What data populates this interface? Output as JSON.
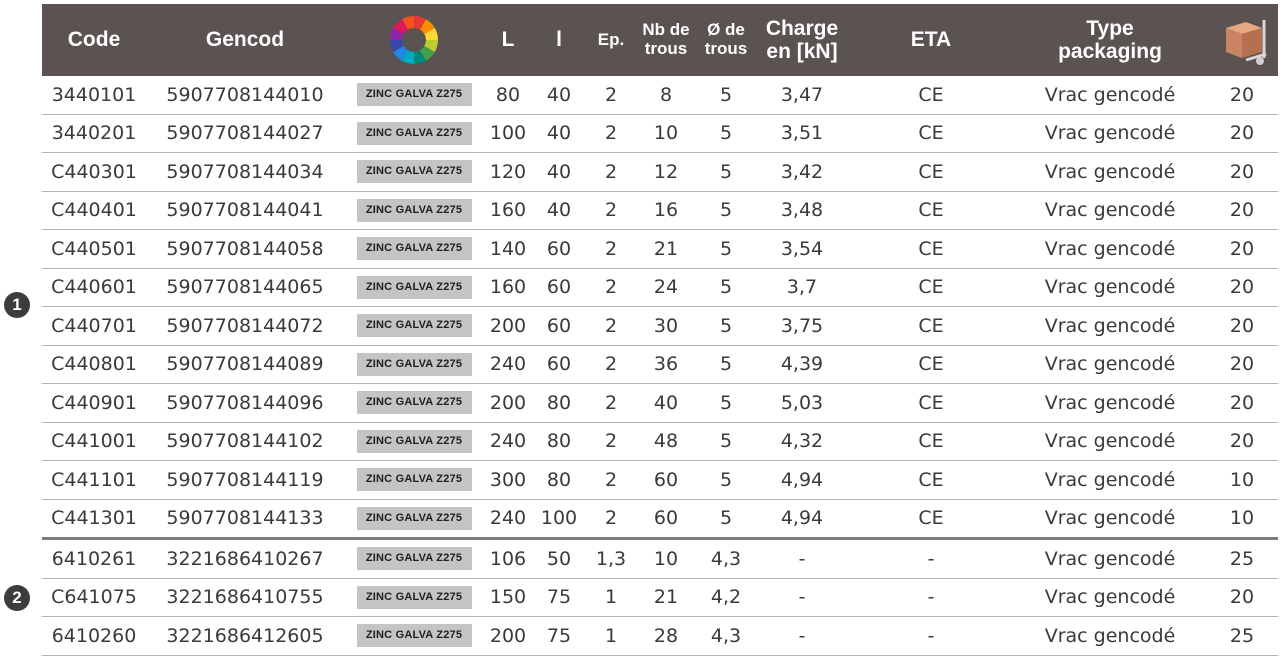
{
  "header": {
    "code": "Code",
    "gencod": "Gencod",
    "color_icon": "color-wheel-icon",
    "L": "L",
    "l": "l",
    "ep": "Ep.",
    "nb_line1": "Nb de",
    "nb_line2": "trous",
    "diam_line1": "Ø de",
    "diam_line2": "trous",
    "charge_line1": "Charge",
    "charge_line2": "en [kN]",
    "eta": "ETA",
    "type_line1": "Type",
    "type_line2": "packaging",
    "qty_icon": "hand-truck-boxes-icon"
  },
  "markers": {
    "group1": "1",
    "group2": "2"
  },
  "rows": [
    {
      "code": "3440101",
      "gencod": "5907708144010",
      "finish": "ZINC GALVA Z275",
      "L": "80",
      "l": "40",
      "ep": "2",
      "nb": "8",
      "d": "5",
      "charge": "3,47",
      "eta": "CE",
      "pack": "Vrac gencodé",
      "qty": "20"
    },
    {
      "code": "3440201",
      "gencod": "5907708144027",
      "finish": "ZINC GALVA Z275",
      "L": "100",
      "l": "40",
      "ep": "2",
      "nb": "10",
      "d": "5",
      "charge": "3,51",
      "eta": "CE",
      "pack": "Vrac gencodé",
      "qty": "20"
    },
    {
      "code": "C440301",
      "gencod": "5907708144034",
      "finish": "ZINC GALVA Z275",
      "L": "120",
      "l": "40",
      "ep": "2",
      "nb": "12",
      "d": "5",
      "charge": "3,42",
      "eta": "CE",
      "pack": "Vrac gencodé",
      "qty": "20"
    },
    {
      "code": "C440401",
      "gencod": "5907708144041",
      "finish": "ZINC GALVA Z275",
      "L": "160",
      "l": "40",
      "ep": "2",
      "nb": "16",
      "d": "5",
      "charge": "3,48",
      "eta": "CE",
      "pack": "Vrac gencodé",
      "qty": "20"
    },
    {
      "code": "C440501",
      "gencod": "5907708144058",
      "finish": "ZINC GALVA Z275",
      "L": "140",
      "l": "60",
      "ep": "2",
      "nb": "21",
      "d": "5",
      "charge": "3,54",
      "eta": "CE",
      "pack": "Vrac gencodé",
      "qty": "20"
    },
    {
      "code": "C440601",
      "gencod": "5907708144065",
      "finish": "ZINC GALVA Z275",
      "L": "160",
      "l": "60",
      "ep": "2",
      "nb": "24",
      "d": "5",
      "charge": "3,7",
      "eta": "CE",
      "pack": "Vrac gencodé",
      "qty": "20"
    },
    {
      "code": "C440701",
      "gencod": "5907708144072",
      "finish": "ZINC GALVA Z275",
      "L": "200",
      "l": "60",
      "ep": "2",
      "nb": "30",
      "d": "5",
      "charge": "3,75",
      "eta": "CE",
      "pack": "Vrac gencodé",
      "qty": "20"
    },
    {
      "code": "C440801",
      "gencod": "5907708144089",
      "finish": "ZINC GALVA Z275",
      "L": "240",
      "l": "60",
      "ep": "2",
      "nb": "36",
      "d": "5",
      "charge": "4,39",
      "eta": "CE",
      "pack": "Vrac gencodé",
      "qty": "20"
    },
    {
      "code": "C440901",
      "gencod": "5907708144096",
      "finish": "ZINC GALVA Z275",
      "L": "200",
      "l": "80",
      "ep": "2",
      "nb": "40",
      "d": "5",
      "charge": "5,03",
      "eta": "CE",
      "pack": "Vrac gencodé",
      "qty": "20"
    },
    {
      "code": "C441001",
      "gencod": "5907708144102",
      "finish": "ZINC GALVA Z275",
      "L": "240",
      "l": "80",
      "ep": "2",
      "nb": "48",
      "d": "5",
      "charge": "4,32",
      "eta": "CE",
      "pack": "Vrac gencodé",
      "qty": "20"
    },
    {
      "code": "C441101",
      "gencod": "5907708144119",
      "finish": "ZINC GALVA Z275",
      "L": "300",
      "l": "80",
      "ep": "2",
      "nb": "60",
      "d": "5",
      "charge": "4,94",
      "eta": "CE",
      "pack": "Vrac gencodé",
      "qty": "10"
    },
    {
      "code": "C441301",
      "gencod": "5907708144133",
      "finish": "ZINC GALVA Z275",
      "L": "240",
      "l": "100",
      "ep": "2",
      "nb": "60",
      "d": "5",
      "charge": "4,94",
      "eta": "CE",
      "pack": "Vrac gencodé",
      "qty": "10"
    },
    {
      "code": "6410261",
      "gencod": "3221686410267",
      "finish": "ZINC GALVA Z275",
      "L": "106",
      "l": "50",
      "ep": "1,3",
      "nb": "10",
      "d": "4,3",
      "charge": "-",
      "eta": "-",
      "pack": "Vrac gencodé",
      "qty": "25"
    },
    {
      "code": "C641075",
      "gencod": "3221686410755",
      "finish": "ZINC GALVA Z275",
      "L": "150",
      "l": "75",
      "ep": "1",
      "nb": "21",
      "d": "4,2",
      "charge": "-",
      "eta": "-",
      "pack": "Vrac gencodé",
      "qty": "20"
    },
    {
      "code": "6410260",
      "gencod": "3221686412605",
      "finish": "ZINC GALVA Z275",
      "L": "200",
      "l": "75",
      "ep": "1",
      "nb": "28",
      "d": "4,3",
      "charge": "-",
      "eta": "-",
      "pack": "Vrac gencodé",
      "qty": "25"
    }
  ]
}
